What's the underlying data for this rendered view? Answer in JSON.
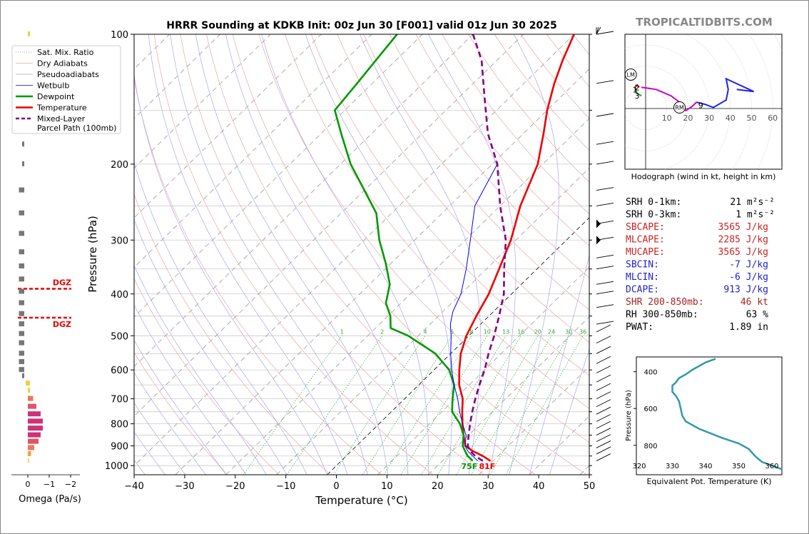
{
  "title": "HRRR Sounding at KDKB Init: 00z Jun 30 [F001] valid 01z Jun 30 2025",
  "watermark": "TROPICALTIDBITS.COM",
  "skewt": {
    "xlabel": "Temperature (°C)",
    "ylabel": "Pressure (hPa)",
    "xticks": [
      -40,
      -30,
      -20,
      -10,
      0,
      10,
      20,
      30,
      40,
      50
    ],
    "yticks": [
      100,
      200,
      300,
      400,
      500,
      600,
      700,
      800,
      900,
      1000
    ],
    "xlim": [
      -40,
      50
    ],
    "ylim": [
      1050,
      100
    ],
    "skew_deg_per_decade": 87,
    "surface_temp_label": "81F",
    "surface_dewpoint_label": "75F",
    "dgz_label": "DGZ",
    "dgz_pressures": [
      389,
      454
    ],
    "mixing_ratio_labels": [
      "1",
      "2",
      "4",
      "6",
      "8",
      "10",
      "13",
      "16",
      "20",
      "24",
      "30",
      "36"
    ],
    "mixing_ratios": [
      1,
      2,
      4,
      6,
      8,
      10,
      13,
      16,
      20,
      24,
      30,
      36
    ],
    "legend": [
      {
        "label": "Sat. Mix. Ratio",
        "color": "#888888",
        "style": "dotted"
      },
      {
        "label": "Dry Adiabats",
        "color": "#e8a0a0",
        "style": "solid"
      },
      {
        "label": "Pseudoadiabats",
        "color": "#a0a0e8",
        "style": "solid"
      },
      {
        "label": "Wetbulb",
        "color": "#0000ee",
        "style": "solid"
      },
      {
        "label": "Dewpoint",
        "color": "#009900",
        "style": "solid"
      },
      {
        "label": "Temperature",
        "color": "#ee0000",
        "style": "solid"
      },
      {
        "label": "Mixed-Layer\nParcel Path (100mb)",
        "color": "#800080",
        "style": "dashed"
      }
    ]
  },
  "chart_data": [
    {
      "type": "line",
      "name": "skewt",
      "series": [
        {
          "name": "Temperature",
          "color": "#ee0000",
          "points": [
            [
              29.5,
              975
            ],
            [
              27,
              950
            ],
            [
              24,
              925
            ],
            [
              21.5,
              900
            ],
            [
              19,
              850
            ],
            [
              16.5,
              800
            ],
            [
              14,
              750
            ],
            [
              11.5,
              700
            ],
            [
              8,
              650
            ],
            [
              5,
              600
            ],
            [
              2,
              550
            ],
            [
              -0.5,
              500
            ],
            [
              -2.5,
              450
            ],
            [
              -4.5,
              400
            ],
            [
              -7.5,
              350
            ],
            [
              -11,
              300
            ],
            [
              -16,
              250
            ],
            [
              -21,
              200
            ],
            [
              -26,
              170
            ],
            [
              -30,
              150
            ],
            [
              -34,
              130
            ],
            [
              -37,
              115
            ],
            [
              -40,
              100
            ]
          ]
        },
        {
          "name": "Dewpoint",
          "color": "#009900",
          "points": [
            [
              26,
              975
            ],
            [
              24,
              950
            ],
            [
              22.5,
              925
            ],
            [
              21,
              900
            ],
            [
              19,
              850
            ],
            [
              16,
              800
            ],
            [
              12,
              750
            ],
            [
              9.5,
              700
            ],
            [
              7,
              650
            ],
            [
              3,
              600
            ],
            [
              -3,
              550
            ],
            [
              -12,
              500
            ],
            [
              -17,
              480
            ],
            [
              -19.5,
              450
            ],
            [
              -23,
              420
            ],
            [
              -26,
              380
            ],
            [
              -31,
              340
            ],
            [
              -37,
              300
            ],
            [
              -43,
              260
            ],
            [
              -50,
              230
            ],
            [
              -58,
              200
            ],
            [
              -66,
              170
            ],
            [
              -72,
              150
            ],
            [
              -73,
              130
            ],
            [
              -75,
              100
            ]
          ]
        },
        {
          "name": "Wetbulb",
          "color": "#0000ee",
          "points": [
            [
              27,
              975
            ],
            [
              25,
              950
            ],
            [
              23,
              925
            ],
            [
              21.5,
              900
            ],
            [
              19.5,
              850
            ],
            [
              16.5,
              800
            ],
            [
              13.5,
              750
            ],
            [
              10.5,
              700
            ],
            [
              7,
              650
            ],
            [
              3.5,
              600
            ],
            [
              0,
              550
            ],
            [
              -3.5,
              500
            ],
            [
              -6,
              470
            ],
            [
              -8,
              440
            ],
            [
              -10,
              400
            ],
            [
              -14,
              350
            ],
            [
              -19,
              300
            ],
            [
              -25,
              250
            ],
            [
              -29,
              200
            ]
          ]
        },
        {
          "name": "Mixed-Layer Parcel Path (100mb)",
          "color": "#800080",
          "points": [
            [
              28,
              975
            ],
            [
              25.5,
              950
            ],
            [
              23.5,
              925
            ],
            [
              22,
              900
            ],
            [
              20,
              850
            ],
            [
              18,
              800
            ],
            [
              16,
              750
            ],
            [
              14,
              700
            ],
            [
              12,
              650
            ],
            [
              10,
              600
            ],
            [
              7.5,
              550
            ],
            [
              5,
              500
            ],
            [
              2,
              450
            ],
            [
              -1.5,
              400
            ],
            [
              -6.5,
              350
            ],
            [
              -12,
              300
            ],
            [
              -20,
              250
            ],
            [
              -29,
              200
            ],
            [
              -37,
              170
            ],
            [
              -45,
              140
            ],
            [
              -53,
              115
            ],
            [
              -60,
              100
            ]
          ]
        }
      ]
    },
    {
      "type": "bar",
      "name": "omega",
      "xlabel": "Omega (Pa/s)",
      "xticks": [
        "0",
        "−1",
        "−2"
      ],
      "pressures": [
        100,
        130,
        155,
        180,
        200,
        230,
        260,
        290,
        320,
        345,
        370,
        395,
        420,
        445,
        470,
        495,
        520,
        550,
        575,
        600,
        620,
        645,
        670,
        700,
        730,
        760,
        790,
        820,
        850,
        880,
        910,
        940,
        975
      ],
      "values": [
        -0.1,
        -0.1,
        0.05,
        0.1,
        0.1,
        0.25,
        0.25,
        0.25,
        0.25,
        0.25,
        0.25,
        0.25,
        0.25,
        0.25,
        0.25,
        0.25,
        0.25,
        0.25,
        0.25,
        0.25,
        0.1,
        0.0,
        -0.1,
        -0.25,
        -0.4,
        -0.6,
        -0.7,
        -0.7,
        -0.6,
        -0.5,
        -0.3,
        -0.15,
        -0.05
      ]
    },
    {
      "type": "line",
      "name": "hodograph",
      "caption": "Hodograph (wind in kt, height in km)",
      "ring_labels": [
        "10",
        "20",
        "30",
        "40",
        "50",
        "60"
      ],
      "height_labels": [
        {
          "t": "1",
          "u": -5,
          "v": 9
        },
        {
          "t": "2",
          "u": -4,
          "v": 10
        },
        {
          "t": "3",
          "u": -4,
          "v": 6
        },
        {
          "t": "9",
          "u": 26,
          "v": 1.5
        }
      ],
      "storm_markers": [
        {
          "t": "LM",
          "u": -7,
          "v": 16
        },
        {
          "t": "RM",
          "u": 16,
          "v": 0.5
        }
      ],
      "segments": [
        {
          "color": "#dd0000",
          "points": [
            [
              -3,
              10
            ],
            [
              -4,
              11
            ],
            [
              -5,
              10
            ]
          ]
        },
        {
          "color": "#22aa22",
          "points": [
            [
              -5,
              10
            ],
            [
              -4,
              7
            ],
            [
              -2,
              6
            ]
          ]
        },
        {
          "color": "#cc00cc",
          "points": [
            [
              -2,
              10
            ],
            [
              5,
              9
            ],
            [
              12,
              6
            ],
            [
              16,
              3
            ],
            [
              19,
              -1
            ],
            [
              22,
              1
            ],
            [
              24,
              3
            ]
          ]
        },
        {
          "color": "#2222ee",
          "points": [
            [
              24,
              3
            ],
            [
              28,
              2
            ],
            [
              32,
              0.5
            ],
            [
              38,
              4
            ],
            [
              39,
              9
            ],
            [
              38,
              14
            ],
            [
              51,
              8
            ],
            [
              43,
              9
            ]
          ]
        }
      ]
    },
    {
      "type": "line",
      "name": "theta_e",
      "xlabel": "Equivalent Pot. Temperature (K)",
      "ylabel": "Pressure (hPa)",
      "xticks": [
        "320",
        "330",
        "340",
        "350",
        "360"
      ],
      "yticks": [
        "400",
        "600",
        "800"
      ],
      "color": "#3399aa",
      "points": [
        [
          343,
          330
        ],
        [
          340,
          350
        ],
        [
          338,
          370
        ],
        [
          336,
          390
        ],
        [
          334,
          415
        ],
        [
          332,
          435
        ],
        [
          331,
          460
        ],
        [
          330,
          475
        ],
        [
          330,
          510
        ],
        [
          331,
          530
        ],
        [
          332,
          560
        ],
        [
          332.5,
          600
        ],
        [
          333,
          640
        ],
        [
          334,
          670
        ],
        [
          338,
          710
        ],
        [
          345,
          760
        ],
        [
          350,
          790
        ],
        [
          353,
          820
        ],
        [
          355,
          860
        ],
        [
          357,
          890
        ],
        [
          360,
          910
        ],
        [
          363,
          930
        ]
      ]
    }
  ],
  "params": [
    {
      "label": "SRH 0-1km:",
      "value": "21",
      "unit": "m²s⁻²",
      "color": "#000000"
    },
    {
      "label": "SRH 0-3km:",
      "value": "1",
      "unit": "m²s⁻²",
      "color": "#000000"
    },
    {
      "label": "SBCAPE:",
      "value": "3565 J/kg",
      "unit": "",
      "color": "#cc2222"
    },
    {
      "label": "MLCAPE:",
      "value": "2285 J/kg",
      "unit": "",
      "color": "#cc2222"
    },
    {
      "label": "MUCAPE:",
      "value": "3565 J/kg",
      "unit": "",
      "color": "#cc2222"
    },
    {
      "label": "SBCIN:",
      "value": "-7 J/kg",
      "unit": "",
      "color": "#2222cc"
    },
    {
      "label": "MLCIN:",
      "value": "-6 J/kg",
      "unit": "",
      "color": "#2222cc"
    },
    {
      "label": "DCAPE:",
      "value": "913 J/kg",
      "unit": "",
      "color": "#2222cc"
    },
    {
      "label": "SHR 200-850mb:",
      "value": "46 kt",
      "unit": "",
      "color": "#aa2222"
    },
    {
      "label": "RH 300-850mb:",
      "value": "63 %",
      "unit": "",
      "color": "#000000"
    },
    {
      "label": "PWAT:",
      "value": "1.89 in",
      "unit": "",
      "color": "#000000"
    }
  ]
}
